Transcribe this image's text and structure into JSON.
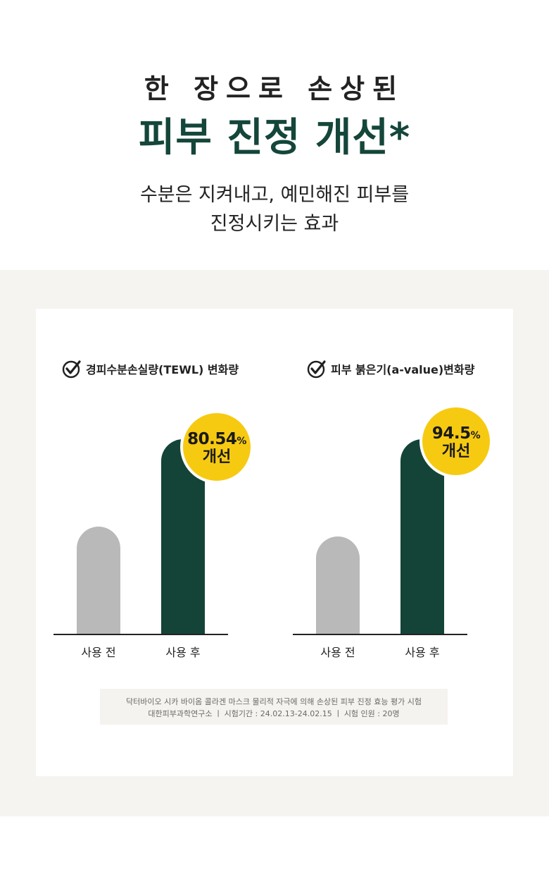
{
  "header": {
    "line1": "한 장으로 손상된",
    "line2": "피부 진정 개선*",
    "sub_line1": "수분은 지켜내고, 예민해진 피부를",
    "sub_line2": "진정시키는 효과"
  },
  "colors": {
    "accent_green": "#14463a",
    "bar_before": "#b9b9b9",
    "bar_after": "#134437",
    "badge_yellow": "#f7ca12",
    "panel_bg": "#f6f4f0"
  },
  "chart_data": [
    {
      "type": "bar",
      "title": "경피수분손실량(TEWL) 변화량",
      "categories": [
        "사용 전",
        "사용 후"
      ],
      "values": [
        0.55,
        1.0
      ],
      "badge": {
        "value": "80.54",
        "unit": "%",
        "label": "개선"
      },
      "icon": "check-circle-icon"
    },
    {
      "type": "bar",
      "title": "피부 붉은기(a-value)변화량",
      "categories": [
        "사용 전",
        "사용 후"
      ],
      "values": [
        0.5,
        1.0
      ],
      "badge": {
        "value": "94.5",
        "unit": "%",
        "label": "개선"
      },
      "icon": "check-circle-icon"
    }
  ],
  "footnote": {
    "line1": "닥터바이오 시카 바이옴 콜라겐 마스크 물리적 자극에 의해 손상된 피부 진정 효능 평가 시험",
    "line2": "대한피부과학연구소  ㅣ 시험기간 : 24.02.13-24.02.15 ㅣ  시험 인원 : 20명"
  }
}
